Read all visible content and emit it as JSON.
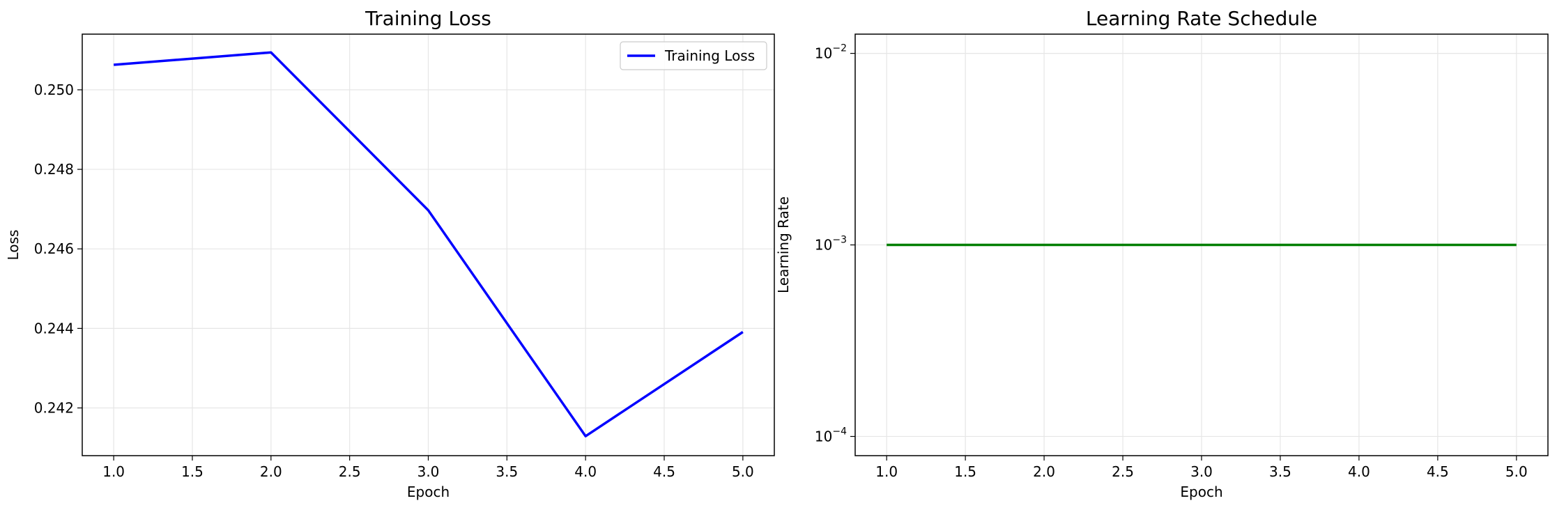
{
  "chart_data": [
    {
      "type": "line",
      "title": "Training Loss",
      "xlabel": "Epoch",
      "ylabel": "Loss",
      "x": [
        1.0,
        2.0,
        3.0,
        4.0,
        5.0
      ],
      "series": [
        {
          "name": "Training Loss",
          "values": [
            0.25063,
            0.25094,
            0.24697,
            0.24129,
            0.24391
          ],
          "color": "#0000ff"
        }
      ],
      "xlim": [
        0.8,
        5.2
      ],
      "ylim": [
        0.2408,
        0.2514
      ],
      "xticks": [
        1.0,
        1.5,
        2.0,
        2.5,
        3.0,
        3.5,
        4.0,
        4.5,
        5.0
      ],
      "xtick_labels": [
        "1.0",
        "1.5",
        "2.0",
        "2.5",
        "3.0",
        "3.5",
        "4.0",
        "4.5",
        "5.0"
      ],
      "yticks": [
        0.242,
        0.244,
        0.246,
        0.248,
        0.25
      ],
      "ytick_labels": [
        "0.242",
        "0.244",
        "0.246",
        "0.248",
        "0.250"
      ],
      "grid": true,
      "legend": "upper right"
    },
    {
      "type": "line",
      "title": "Learning Rate Schedule",
      "xlabel": "Epoch",
      "ylabel": "Learning Rate",
      "yscale": "log",
      "x": [
        1.0,
        2.0,
        3.0,
        4.0,
        5.0
      ],
      "series": [
        {
          "values": [
            0.001,
            0.001,
            0.001,
            0.001,
            0.001
          ],
          "color": "#007f00"
        }
      ],
      "xlim": [
        0.8,
        5.2
      ],
      "ylim": [
        7.94e-05,
        0.0126
      ],
      "xticks": [
        1.0,
        1.5,
        2.0,
        2.5,
        3.0,
        3.5,
        4.0,
        4.5,
        5.0
      ],
      "xtick_labels": [
        "1.0",
        "1.5",
        "2.0",
        "2.5",
        "3.0",
        "3.5",
        "4.0",
        "4.5",
        "5.0"
      ],
      "yticks": [
        0.0001,
        0.001,
        0.01
      ],
      "ytick_labels": [
        {
          "base": "10",
          "exp": "−4"
        },
        {
          "base": "10",
          "exp": "−3"
        },
        {
          "base": "10",
          "exp": "−2"
        }
      ],
      "grid": true
    }
  ]
}
